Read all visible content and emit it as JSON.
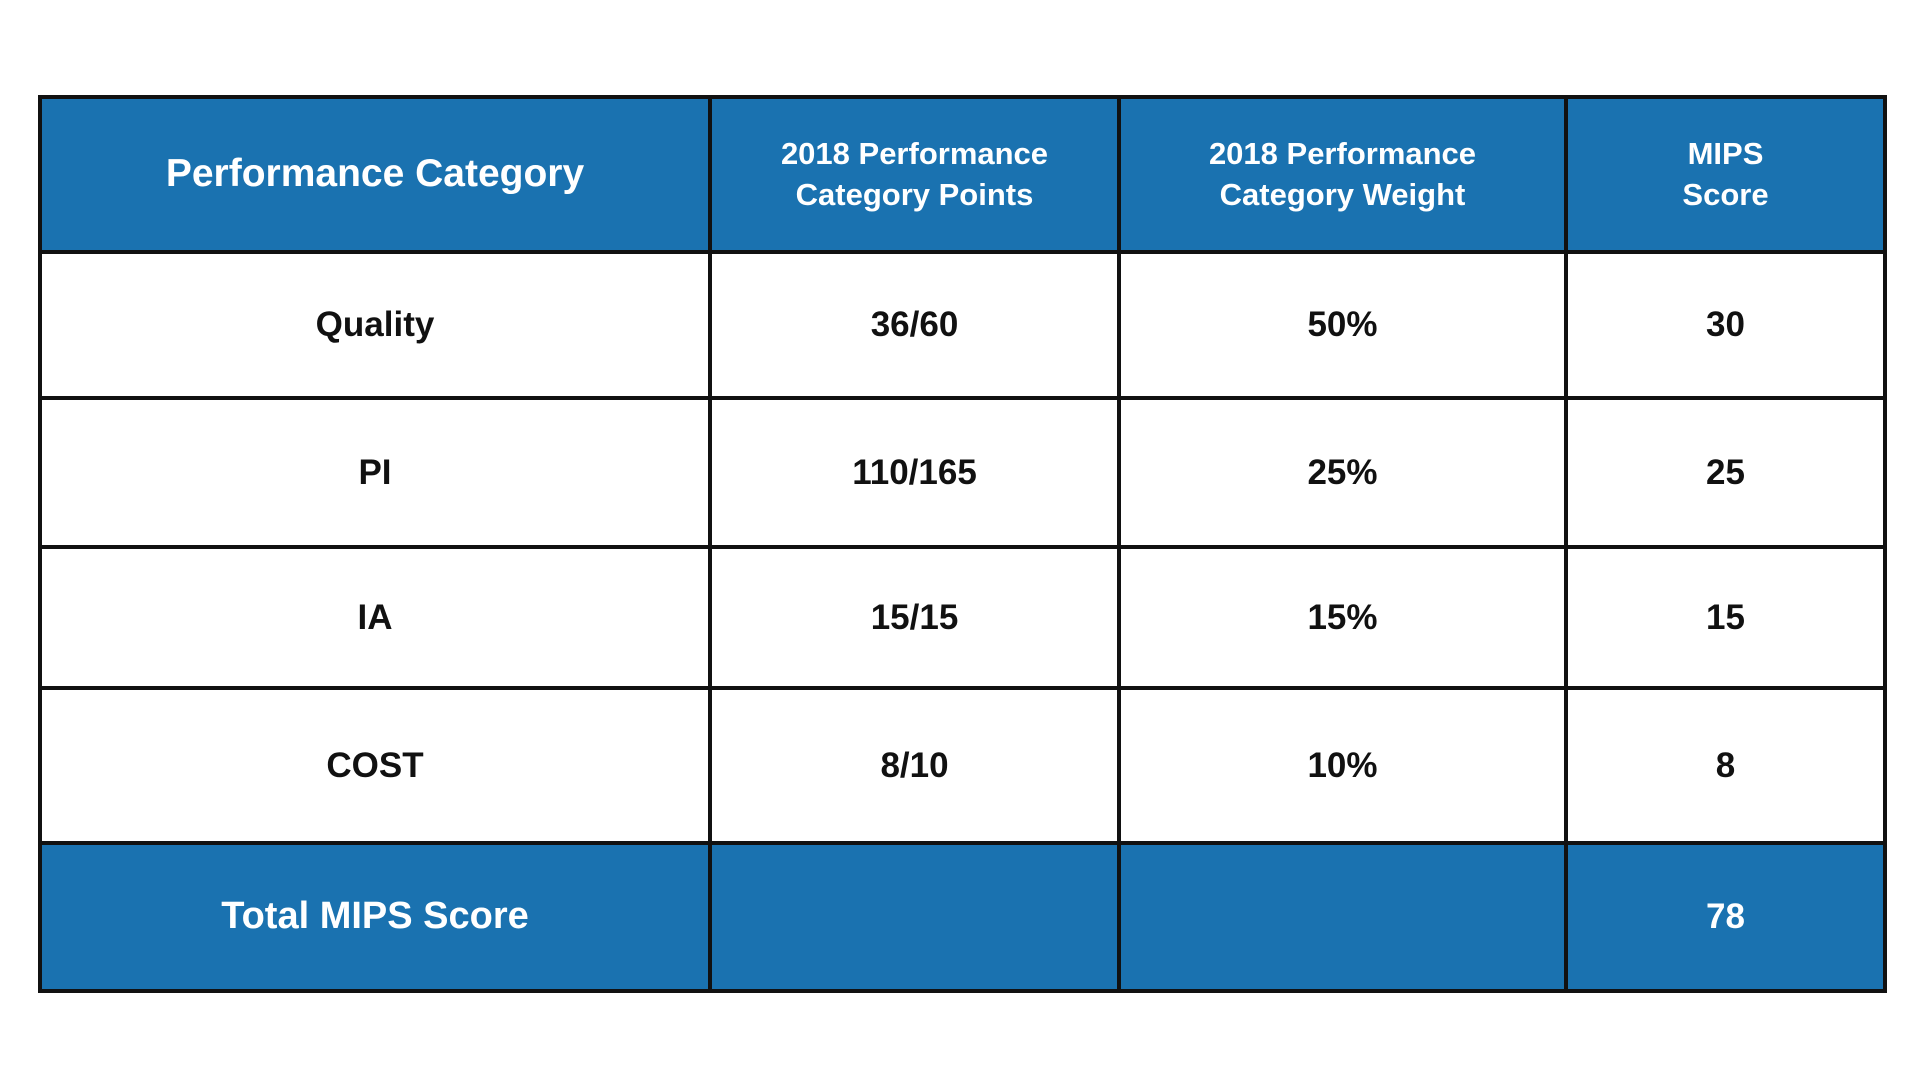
{
  "table": {
    "header": [
      [
        "Performance Category"
      ],
      [
        "2018 Performance",
        "Category Points"
      ],
      [
        "2018 Performance",
        "Category Weight"
      ],
      [
        "MIPS",
        "Score"
      ]
    ],
    "rows": [
      [
        "Quality",
        "36/60",
        "50%",
        "30"
      ],
      [
        "PI",
        "110/165",
        "25%",
        "25"
      ],
      [
        "IA",
        "15/15",
        "15%",
        "15"
      ],
      [
        "COST",
        "8/10",
        "10%",
        "8"
      ]
    ],
    "total": {
      "label": "Total MIPS Score",
      "score": "78"
    }
  }
}
